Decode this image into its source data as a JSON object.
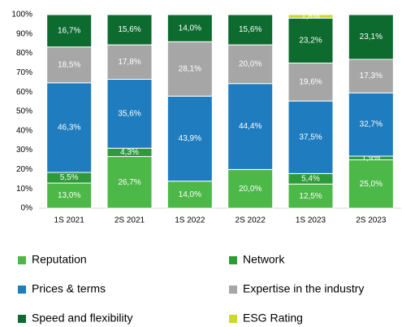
{
  "chart_data": {
    "type": "stacked_bar",
    "categories": [
      "1S 2021",
      "2S 2021",
      "1S 2022",
      "2S 2022",
      "1S 2023",
      "2S 2023"
    ],
    "series": [
      {
        "name": "Reputation",
        "color": "#4cb848",
        "values": [
          13.0,
          26.7,
          14.0,
          20.0,
          12.5,
          25.0
        ],
        "value_labels": [
          "13,0%",
          "26,7%",
          "14,0%",
          "20,0%",
          "12,5%",
          "25,0%"
        ]
      },
      {
        "name": "Network",
        "color": "#2f9a3a",
        "values": [
          5.5,
          4.3,
          null,
          null,
          5.4,
          1.9
        ],
        "value_labels": [
          "5,5%",
          "4,3%",
          null,
          null,
          "5,4%",
          "1,9%"
        ]
      },
      {
        "name": "Prices & terms",
        "color": "#1f7dbf",
        "values": [
          46.3,
          35.6,
          43.9,
          44.4,
          37.5,
          32.7
        ],
        "value_labels": [
          "46,3%",
          "35,6%",
          "43,9%",
          "44,4%",
          "37,5%",
          "32,7%"
        ]
      },
      {
        "name": "Expertise in the industry",
        "color": "#a6a6a6",
        "values": [
          18.5,
          17.8,
          28.1,
          20.0,
          19.6,
          17.3
        ],
        "value_labels": [
          "18,5%",
          "17,8%",
          "28,1%",
          "20,0%",
          "19,6%",
          "17,3%"
        ]
      },
      {
        "name": "Speed and flexibility",
        "color": "#0d6b2f",
        "values": [
          16.7,
          15.6,
          14.0,
          15.6,
          23.2,
          23.1
        ],
        "value_labels": [
          "16,7%",
          "15,6%",
          "14,0%",
          "15,6%",
          "23,2%",
          "23,1%"
        ]
      },
      {
        "name": "ESG Rating",
        "color": "#c9da2a",
        "values": [
          null,
          null,
          null,
          null,
          1.8,
          null
        ],
        "value_labels": [
          null,
          null,
          null,
          null,
          "1,8%",
          null
        ]
      }
    ],
    "ylim": [
      0,
      100
    ],
    "yticks": [
      {
        "value": 0,
        "label": "0%"
      },
      {
        "value": 10,
        "label": "10%"
      },
      {
        "value": 20,
        "label": "20%"
      },
      {
        "value": 30,
        "label": "30%"
      },
      {
        "value": 40,
        "label": "40%"
      },
      {
        "value": 50,
        "label": "50%"
      },
      {
        "value": 60,
        "label": "60%"
      },
      {
        "value": 70,
        "label": "70%"
      },
      {
        "value": 80,
        "label": "80%"
      },
      {
        "value": 90,
        "label": "90%"
      },
      {
        "value": 100,
        "label": "100%"
      }
    ],
    "grid": false
  }
}
